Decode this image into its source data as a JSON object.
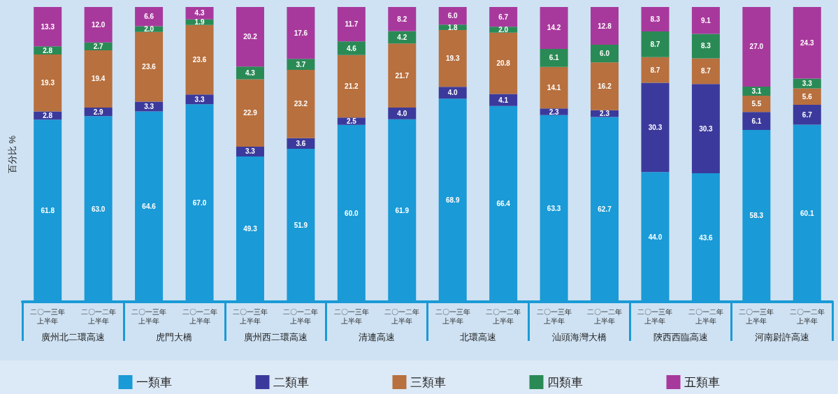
{
  "chart_data": {
    "type": "bar",
    "stacked": true,
    "ylabel": "百分比 %",
    "ylim": [
      0,
      100
    ],
    "tick_labels": "x",
    "legend": "bottom",
    "grid": false,
    "categories": [
      "二〇一三年上半年",
      "二〇一二年上半年",
      "二〇一三年上半年",
      "二〇一二年上半年",
      "二〇一三年上半年",
      "二〇一二年上半年",
      "二〇一三年上半年",
      "二〇一二年上半年",
      "二〇一三年上半年",
      "二〇一二年上半年",
      "二〇一三年上半年",
      "二〇一二年上半年",
      "二〇一三年上半年",
      "二〇一二年上半年",
      "二〇一三年上半年",
      "二〇一二年上半年"
    ],
    "annotations": [
      "廣州北二環高速",
      "虎門大橋",
      "廣州西二環高速",
      "清連高速",
      "北環高速",
      "汕頭海灣大橋",
      "陝西西臨高速",
      "河南尉許高速"
    ],
    "series": [
      {
        "name": "一類車",
        "color": "#1a9ad6",
        "values": [
          61.8,
          63.0,
          64.6,
          67.0,
          49.3,
          51.9,
          60.0,
          61.9,
          68.9,
          66.4,
          63.3,
          62.7,
          44.0,
          43.6,
          58.3,
          60.1
        ],
        "value_labels": [
          "61.8",
          "63.0",
          "64.6",
          "67.0",
          "49.3",
          "51.9",
          "60.0",
          "61.9",
          "68.9",
          "66.4",
          "63.3",
          "62.7",
          "44.0",
          "43.6",
          "58.3",
          "60.1"
        ]
      },
      {
        "name": "二類車",
        "color": "#3b3a9c",
        "values": [
          2.8,
          2.9,
          3.3,
          3.3,
          3.3,
          3.6,
          2.5,
          4.0,
          4.0,
          4.1,
          2.3,
          2.3,
          30.3,
          30.3,
          6.1,
          6.7
        ],
        "value_labels": [
          "2.8",
          "2.9",
          "3.3",
          "3.3",
          "3.3",
          "3.6",
          "2.5",
          "4.0",
          "4.0",
          "4.1",
          "2.3",
          "2.3",
          "30.3",
          "30.3",
          "6.1",
          "6.7"
        ]
      },
      {
        "name": "三類車",
        "color": "#b8703e",
        "values": [
          19.3,
          19.4,
          23.6,
          23.6,
          22.9,
          23.2,
          21.2,
          21.7,
          19.3,
          20.8,
          14.1,
          16.2,
          8.7,
          8.7,
          5.5,
          5.6
        ],
        "value_labels": [
          "19.3",
          "19.4",
          "23.6",
          "23.6",
          "22.9",
          "23.2",
          "21.2",
          "21.7",
          "19.3",
          "20.8",
          "14.1",
          "16.2",
          "8.7",
          "8.7",
          "5.5",
          "5.6"
        ]
      },
      {
        "name": "四類車",
        "color": "#2a8a55",
        "values": [
          2.8,
          2.7,
          2.0,
          1.9,
          4.3,
          3.7,
          4.6,
          4.2,
          1.8,
          2.0,
          6.1,
          6.0,
          8.7,
          8.3,
          3.1,
          3.3
        ],
        "value_labels": [
          "2.8",
          "2.7",
          "2.0",
          "1.9",
          "4.3",
          "3.7",
          "4.6",
          "4.2",
          "1.8",
          "2.0",
          "6.1",
          "6.0",
          "8.7",
          "8.3",
          "3.1",
          "3.3"
        ]
      },
      {
        "name": "五類車",
        "color": "#a8399c",
        "values": [
          13.3,
          12.0,
          6.6,
          4.3,
          20.2,
          17.6,
          11.7,
          8.2,
          6.0,
          6.7,
          14.2,
          12.8,
          8.3,
          9.1,
          27.0,
          24.3
        ],
        "value_labels": [
          "13.3",
          "12.0",
          "6.6",
          "4.3",
          "20.2",
          "17.6",
          "11.7",
          "8.2",
          "6.0",
          "6.7",
          "14.2",
          "12.8",
          "8.3",
          "9.1",
          "27.0",
          "24.3"
        ]
      }
    ]
  }
}
